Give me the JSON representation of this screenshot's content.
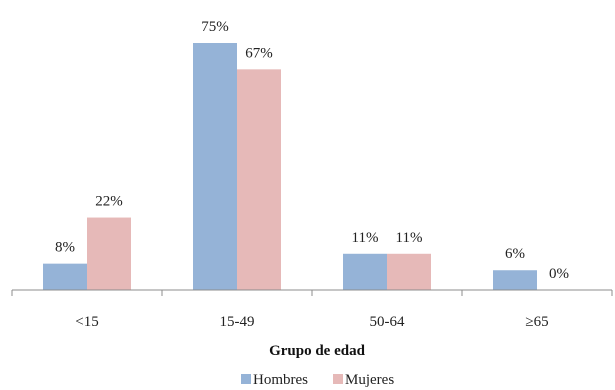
{
  "chart_data": {
    "type": "bar",
    "categories": [
      "<15",
      "15-49",
      "50-64",
      "≥65"
    ],
    "series": [
      {
        "name": "Hombres",
        "values": [
          8,
          75,
          11,
          6
        ],
        "color": "#95b3d7"
      },
      {
        "name": "Mujeres",
        "values": [
          22,
          67,
          11,
          0
        ],
        "color": "#e6b9b8"
      }
    ],
    "value_suffix": "%",
    "title": "",
    "xlabel": "Grupo de edad",
    "ylabel": "",
    "ylim": [
      0,
      75
    ],
    "grid": false,
    "legend": "bottom-center"
  }
}
